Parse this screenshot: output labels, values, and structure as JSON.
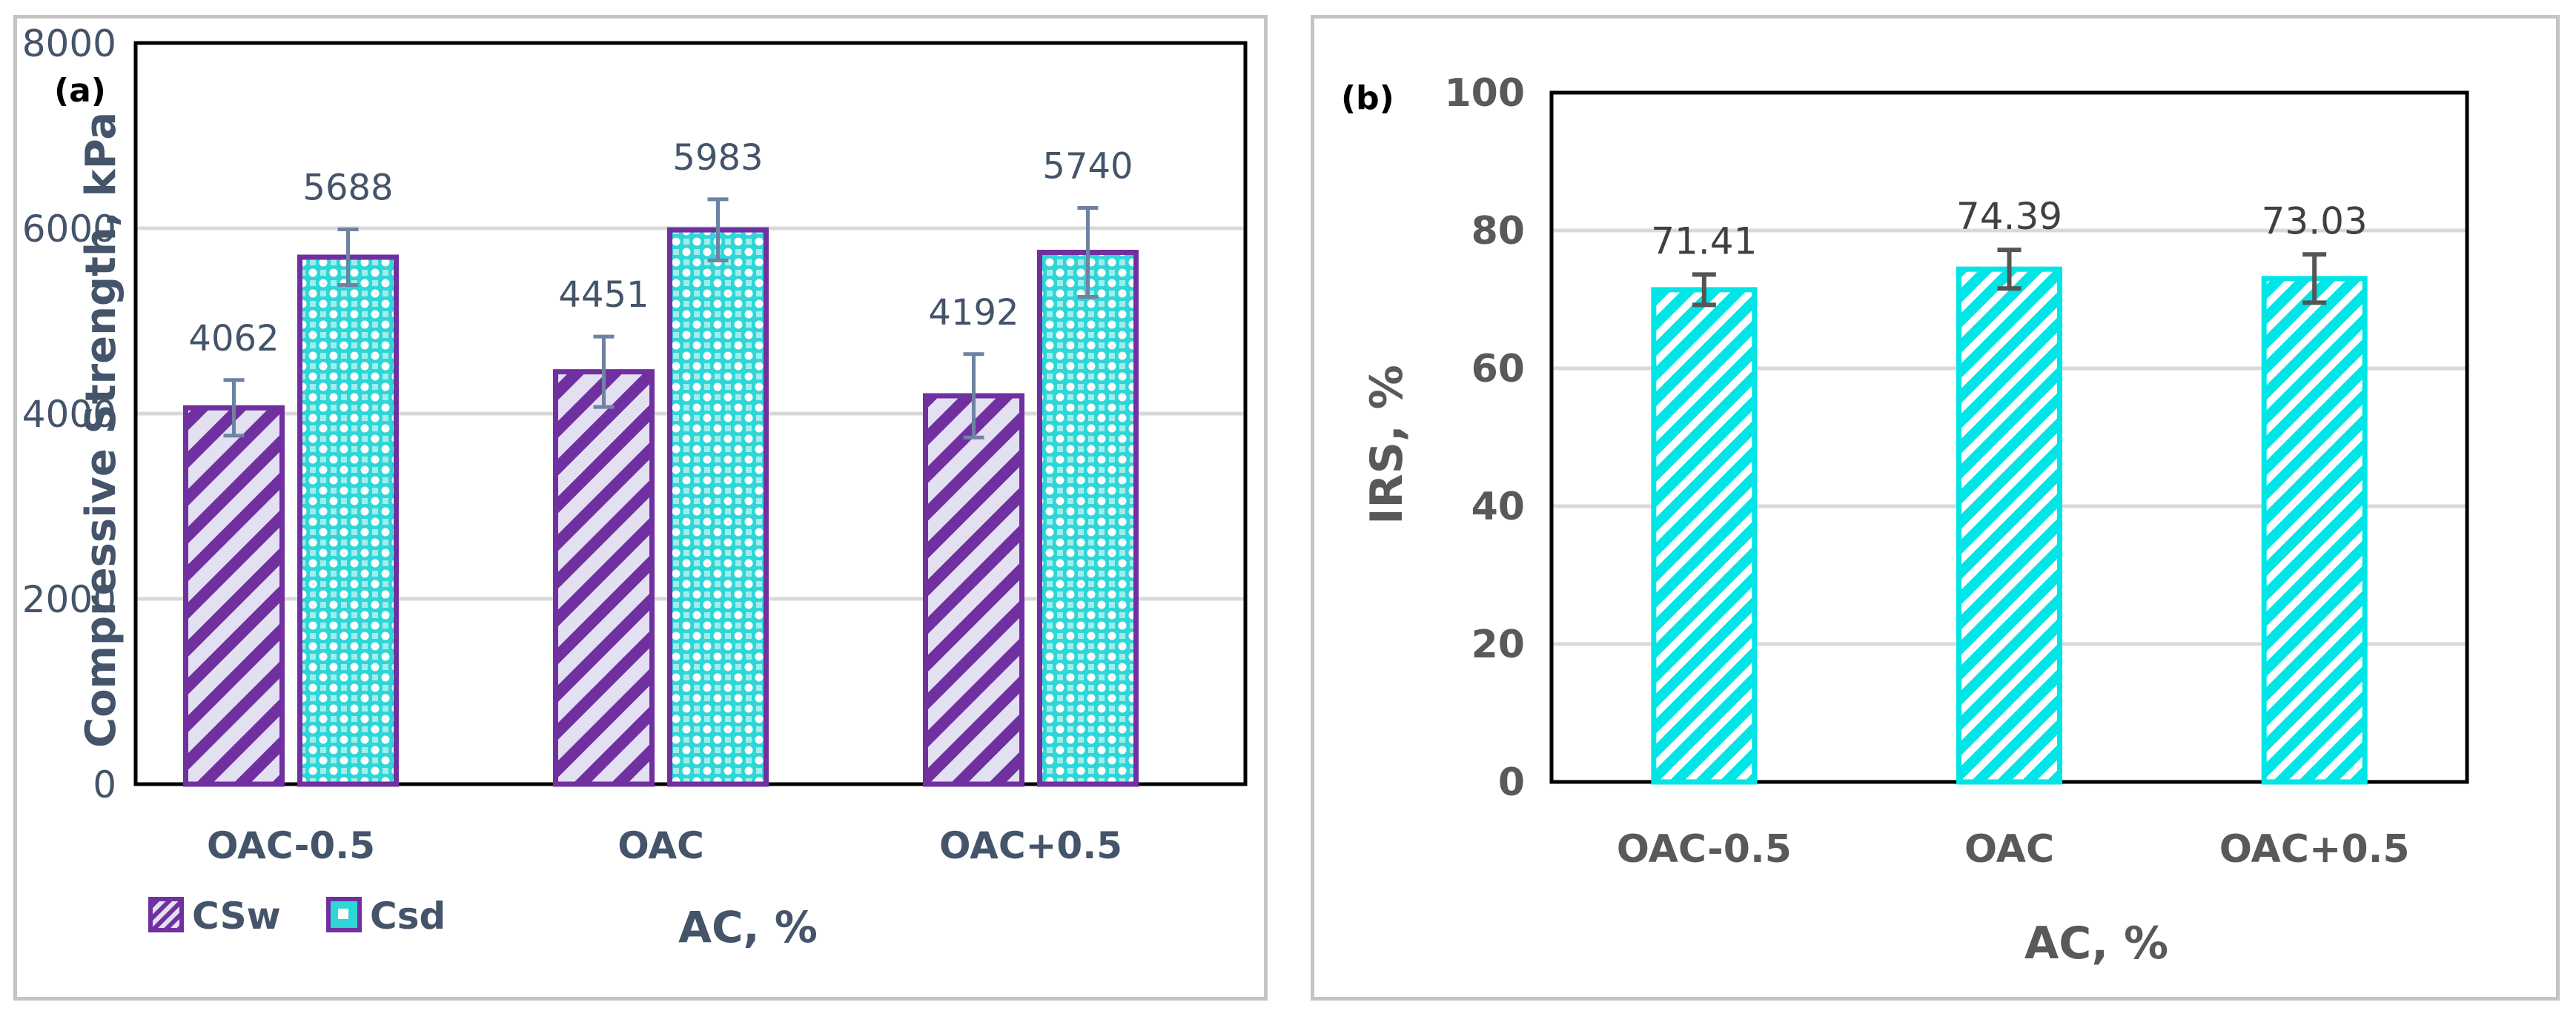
{
  "colors": {
    "csw_stroke": "#7030A0",
    "csw_fill": "#E3E0F2",
    "csd_stroke": "#7030A0",
    "csd_fill": "#2ED6D6",
    "irs_fill": "#00E5E5",
    "errorbar_a": "#6E82A3",
    "errorbar_b": "#555555",
    "text_a": "#44546A",
    "text_b": "#595959",
    "grid": "#D9D9D9"
  },
  "chart_data": [
    {
      "panel_label": "(a)",
      "type": "bar",
      "title": "",
      "xlabel": "AC, %",
      "ylabel": "Compressive Strength, kPa",
      "categories": [
        "OAC-0.5",
        "OAC",
        "OAC+0.5"
      ],
      "ylim": [
        0,
        8000
      ],
      "yticks": [
        "0",
        "2000",
        "4000",
        "6000",
        "8000"
      ],
      "ytick_values": [
        0,
        2000,
        4000,
        6000,
        8000
      ],
      "grid": true,
      "legend_position": "bottom-left",
      "series": [
        {
          "name": "CSw",
          "values": [
            4062,
            4451,
            4192
          ],
          "labels": [
            "4062",
            "4451",
            "4192"
          ],
          "error": [
            300,
            380,
            450
          ],
          "pattern": "diagonal-stripes"
        },
        {
          "name": "Csd",
          "values": [
            5688,
            5983,
            5740
          ],
          "labels": [
            "5688",
            "5983",
            "5740"
          ],
          "error": [
            300,
            330,
            480
          ],
          "pattern": "checker-dots"
        }
      ]
    },
    {
      "panel_label": "(b)",
      "type": "bar",
      "title": "",
      "xlabel": "AC, %",
      "ylabel": "IRS, %",
      "categories": [
        "OAC-0.5",
        "OAC",
        "OAC+0.5"
      ],
      "ylim": [
        0,
        100
      ],
      "yticks": [
        "0",
        "20",
        "40",
        "60",
        "80",
        "100"
      ],
      "ytick_values": [
        0,
        20,
        40,
        60,
        80,
        100
      ],
      "grid": true,
      "series": [
        {
          "name": "IRS",
          "values": [
            71.41,
            74.39,
            73.03
          ],
          "labels": [
            "71.41",
            "74.39",
            "73.03"
          ],
          "error": [
            2.2,
            2.8,
            3.5
          ],
          "pattern": "diagonal-stripes"
        }
      ]
    }
  ]
}
